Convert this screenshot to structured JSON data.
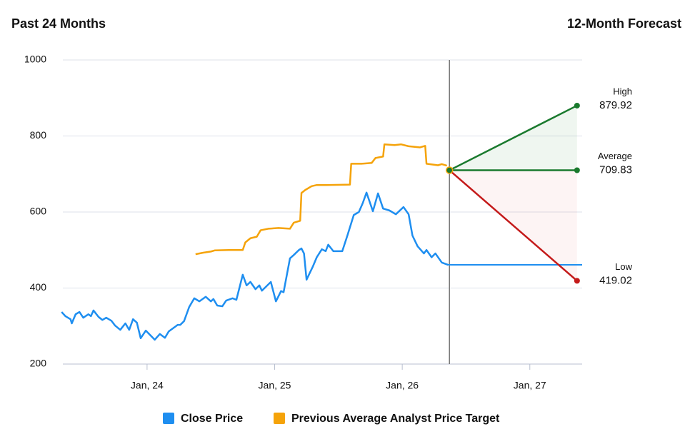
{
  "chart_data": {
    "type": "line",
    "left_title": "Past 24 Months",
    "right_title": "12-Month Forecast",
    "xlim": [
      2023.34,
      2027.41
    ],
    "xticks": [
      {
        "value": 2024,
        "label": "Jan, 24"
      },
      {
        "value": 2025,
        "label": "Jan, 25"
      },
      {
        "value": 2026,
        "label": "Jan, 26"
      },
      {
        "value": 2027,
        "label": "Jan, 27"
      }
    ],
    "ylim": [
      200,
      1000
    ],
    "yticks": [
      200,
      400,
      600,
      800,
      1000
    ],
    "grid": true,
    "series": [
      {
        "name": "Close Price",
        "color": "#1e8ef0",
        "x": [
          2023.33,
          2023.36,
          2023.4,
          2023.41,
          2023.44,
          2023.47,
          2023.5,
          2023.54,
          2023.56,
          2023.58,
          2023.62,
          2023.65,
          2023.68,
          2023.72,
          2023.75,
          2023.79,
          2023.83,
          2023.86,
          2023.89,
          2023.92,
          2023.95,
          2023.99,
          2024.06,
          2024.1,
          2024.14,
          2024.17,
          2024.24,
          2024.26,
          2024.29,
          2024.33,
          2024.37,
          2024.41,
          2024.46,
          2024.5,
          2024.52,
          2024.55,
          2024.59,
          2024.62,
          2024.67,
          2024.7,
          2024.75,
          2024.78,
          2024.81,
          2024.85,
          2024.88,
          2024.9,
          2024.97,
          2025.01,
          2025.05,
          2025.07,
          2025.12,
          2025.15,
          2025.19,
          2025.21,
          2025.23,
          2025.25,
          2025.3,
          2025.33,
          2025.37,
          2025.4,
          2025.42,
          2025.46,
          2025.53,
          2025.57,
          2025.62,
          2025.66,
          2025.69,
          2025.72,
          2025.77,
          2025.81,
          2025.85,
          2025.9,
          2025.95,
          2026.01,
          2026.05,
          2026.08,
          2026.12,
          2026.17,
          2026.19,
          2026.23,
          2026.26,
          2026.31,
          2026.36
        ],
        "values": [
          337,
          326,
          318,
          307,
          331,
          337,
          322,
          331,
          326,
          341,
          324,
          316,
          322,
          314,
          301,
          290,
          307,
          290,
          318,
          309,
          268,
          288,
          264,
          279,
          269,
          286,
          303,
          303,
          313,
          350,
          373,
          365,
          377,
          365,
          371,
          354,
          352,
          367,
          373,
          369,
          435,
          407,
          416,
          397,
          407,
          393,
          416,
          365,
          392,
          389,
          478,
          487,
          500,
          504,
          491,
          422,
          457,
          481,
          502,
          497,
          514,
          497,
          497,
          538,
          592,
          600,
          623,
          651,
          602,
          649,
          609,
          604,
          594,
          613,
          594,
          538,
          510,
          491,
          500,
          481,
          491,
          467,
          461
        ]
      },
      {
        "name": "Previous Average Analyst Price Target",
        "color": "#f5a30a",
        "x": [
          2024.38,
          2024.44,
          2024.5,
          2024.53,
          2024.64,
          2024.75,
          2024.77,
          2024.81,
          2024.86,
          2024.89,
          2024.95,
          2025.03,
          2025.12,
          2025.15,
          2025.2,
          2025.21,
          2025.24,
          2025.29,
          2025.33,
          2025.4,
          2025.59,
          2025.6,
          2025.68,
          2025.76,
          2025.79,
          2025.85,
          2025.86,
          2025.94,
          2025.99,
          2026.05,
          2026.14,
          2026.18,
          2026.19,
          2026.28,
          2026.31,
          2026.35
        ],
        "values": [
          489,
          493,
          496,
          499,
          500,
          500,
          520,
          531,
          535,
          552,
          556,
          558,
          556,
          572,
          577,
          650,
          658,
          668,
          671,
          671,
          672,
          727,
          727,
          729,
          742,
          746,
          778,
          776,
          778,
          773,
          770,
          774,
          727,
          723,
          726,
          722
        ]
      }
    ],
    "forecast": {
      "x": [
        2026.37,
        2027.37
      ],
      "start": 709.83,
      "points": [
        {
          "name": "High",
          "value": 879.92,
          "color": "#1a7a2e"
        },
        {
          "name": "Average",
          "value": 709.83,
          "color": "#1a7a2e"
        },
        {
          "name": "Low",
          "value": 419.02,
          "color": "#c41a1a"
        }
      ]
    }
  }
}
